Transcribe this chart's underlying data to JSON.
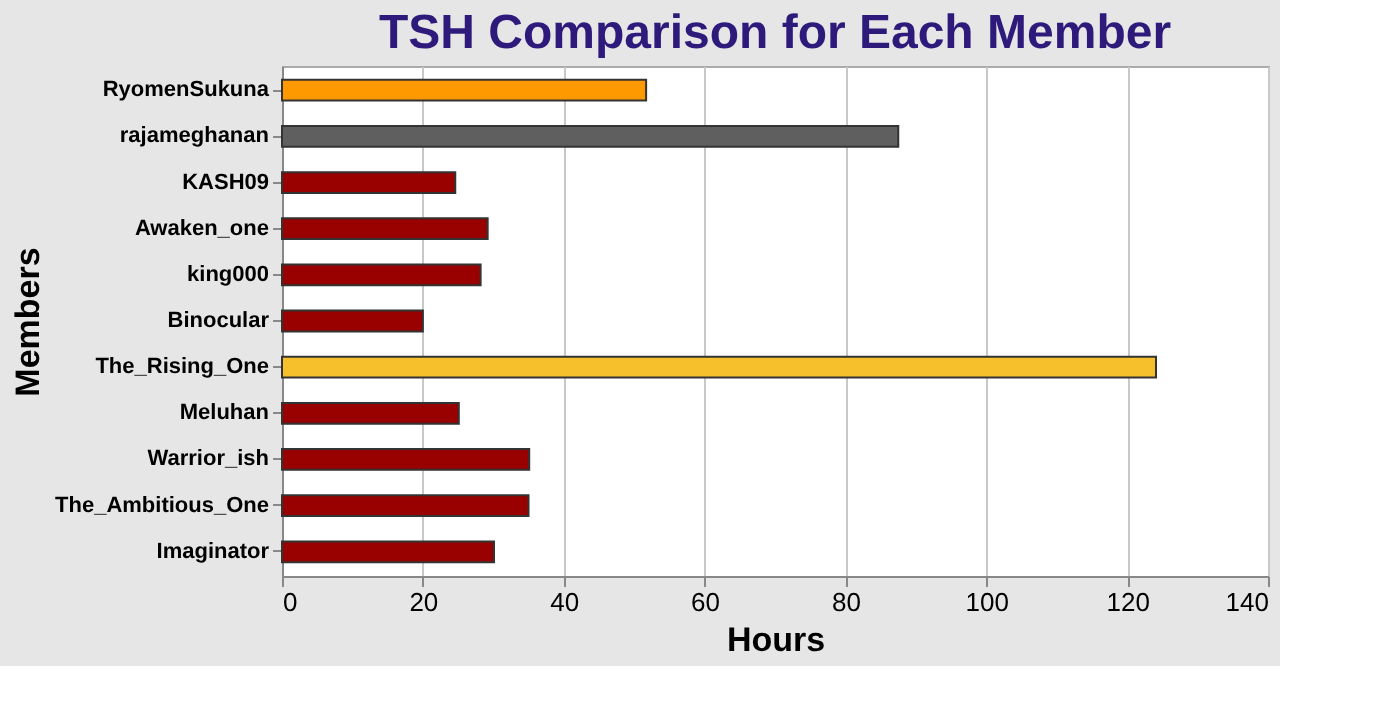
{
  "chart_data": {
    "type": "bar",
    "orientation": "horizontal",
    "title": "TSH Comparison for Each Member",
    "xlabel": "Hours",
    "ylabel": "Members",
    "categories": [
      "RyomenSukuna",
      "rajameghanan",
      "KASH09",
      "Awaken_one",
      "king000",
      "Binocular",
      "The_Rising_One",
      "Meluhan",
      "Warrior_ish",
      "The_Ambitious_One",
      "Imaginator"
    ],
    "values": [
      51.7,
      87.5,
      24.6,
      29.2,
      28.2,
      20,
      124.1,
      25.1,
      35.1,
      35,
      30.1
    ],
    "colors": [
      "#ff9900",
      "#5f5f5f",
      "#990000",
      "#990000",
      "#990000",
      "#990000",
      "#f5c02c",
      "#990000",
      "#990000",
      "#990000",
      "#990000"
    ],
    "xlim": [
      0,
      140
    ],
    "xticks": [
      0,
      20,
      40,
      60,
      80,
      100,
      120,
      140
    ],
    "grid": "x"
  }
}
